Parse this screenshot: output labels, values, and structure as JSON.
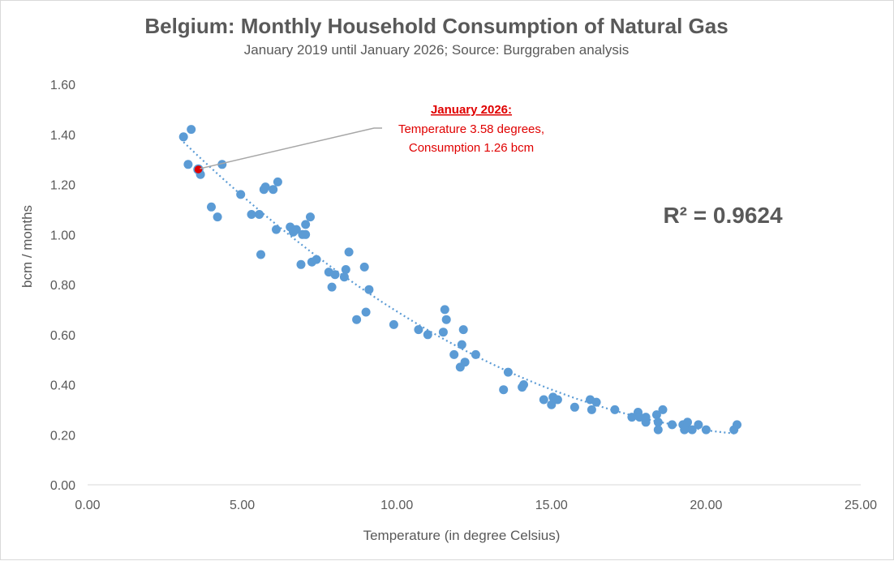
{
  "chart_data": {
    "type": "scatter",
    "title": "Belgium: Monthly Household Consumption of Natural Gas",
    "subtitle": "January 2019 until January 2026; Source: Burggraben analysis",
    "xlabel": "Temperature (in degree Celsius)",
    "ylabel": "bcm / months",
    "xlim": [
      0,
      25
    ],
    "ylim": [
      0,
      1.6
    ],
    "x_ticks": [
      "0.00",
      "5.00",
      "10.00",
      "15.00",
      "20.00",
      "25.00"
    ],
    "y_ticks": [
      "0.00",
      "0.20",
      "0.40",
      "0.60",
      "0.80",
      "1.00",
      "1.20",
      "1.40",
      "1.60"
    ],
    "grid": false,
    "point_color": "#5b9bd5",
    "highlight_color": "#e00000",
    "trendline": {
      "type": "polynomial",
      "color": "#5b9bd5",
      "style": "dotted",
      "x_start": 3.1,
      "x_end": 21.0,
      "r_squared_label": "R² = 0.9624"
    },
    "annotation": {
      "heading": "January 2026:",
      "line1": "Temperature 3.58 degrees,",
      "line2": "Consumption 1.26 bcm",
      "point": [
        3.58,
        1.26
      ]
    },
    "points": [
      [
        3.1,
        1.39
      ],
      [
        3.35,
        1.42
      ],
      [
        3.25,
        1.28
      ],
      [
        3.65,
        1.24
      ],
      [
        4.35,
        1.28
      ],
      [
        4.0,
        1.11
      ],
      [
        4.2,
        1.07
      ],
      [
        4.95,
        1.16
      ],
      [
        5.3,
        1.08
      ],
      [
        5.55,
        1.08
      ],
      [
        5.6,
        0.92
      ],
      [
        5.7,
        1.18
      ],
      [
        5.75,
        1.19
      ],
      [
        6.0,
        1.18
      ],
      [
        6.15,
        1.21
      ],
      [
        6.1,
        1.02
      ],
      [
        6.55,
        1.03
      ],
      [
        6.65,
        1.01
      ],
      [
        6.75,
        1.02
      ],
      [
        6.95,
        1.0
      ],
      [
        7.05,
        1.0
      ],
      [
        7.05,
        1.04
      ],
      [
        7.2,
        1.07
      ],
      [
        6.9,
        0.88
      ],
      [
        7.25,
        0.89
      ],
      [
        7.4,
        0.9
      ],
      [
        7.8,
        0.85
      ],
      [
        8.0,
        0.84
      ],
      [
        7.9,
        0.79
      ],
      [
        8.3,
        0.83
      ],
      [
        8.35,
        0.86
      ],
      [
        8.45,
        0.93
      ],
      [
        8.95,
        0.87
      ],
      [
        9.1,
        0.78
      ],
      [
        8.7,
        0.66
      ],
      [
        9.0,
        0.69
      ],
      [
        9.9,
        0.64
      ],
      [
        10.7,
        0.62
      ],
      [
        11.0,
        0.6
      ],
      [
        11.5,
        0.61
      ],
      [
        11.6,
        0.66
      ],
      [
        11.55,
        0.7
      ],
      [
        12.15,
        0.62
      ],
      [
        12.1,
        0.56
      ],
      [
        11.85,
        0.52
      ],
      [
        12.05,
        0.47
      ],
      [
        12.2,
        0.49
      ],
      [
        12.55,
        0.52
      ],
      [
        13.6,
        0.45
      ],
      [
        13.45,
        0.38
      ],
      [
        14.05,
        0.39
      ],
      [
        14.1,
        0.4
      ],
      [
        14.75,
        0.34
      ],
      [
        15.0,
        0.32
      ],
      [
        15.05,
        0.35
      ],
      [
        15.2,
        0.34
      ],
      [
        15.75,
        0.31
      ],
      [
        16.25,
        0.34
      ],
      [
        16.45,
        0.33
      ],
      [
        16.3,
        0.3
      ],
      [
        17.05,
        0.3
      ],
      [
        17.6,
        0.27
      ],
      [
        17.8,
        0.29
      ],
      [
        17.85,
        0.27
      ],
      [
        18.05,
        0.25
      ],
      [
        18.05,
        0.27
      ],
      [
        18.4,
        0.28
      ],
      [
        18.45,
        0.25
      ],
      [
        18.45,
        0.22
      ],
      [
        18.6,
        0.3
      ],
      [
        18.9,
        0.24
      ],
      [
        19.25,
        0.24
      ],
      [
        19.3,
        0.22
      ],
      [
        19.35,
        0.23
      ],
      [
        19.4,
        0.25
      ],
      [
        19.55,
        0.22
      ],
      [
        19.75,
        0.24
      ],
      [
        20.0,
        0.22
      ],
      [
        20.9,
        0.22
      ],
      [
        21.0,
        0.24
      ]
    ]
  }
}
